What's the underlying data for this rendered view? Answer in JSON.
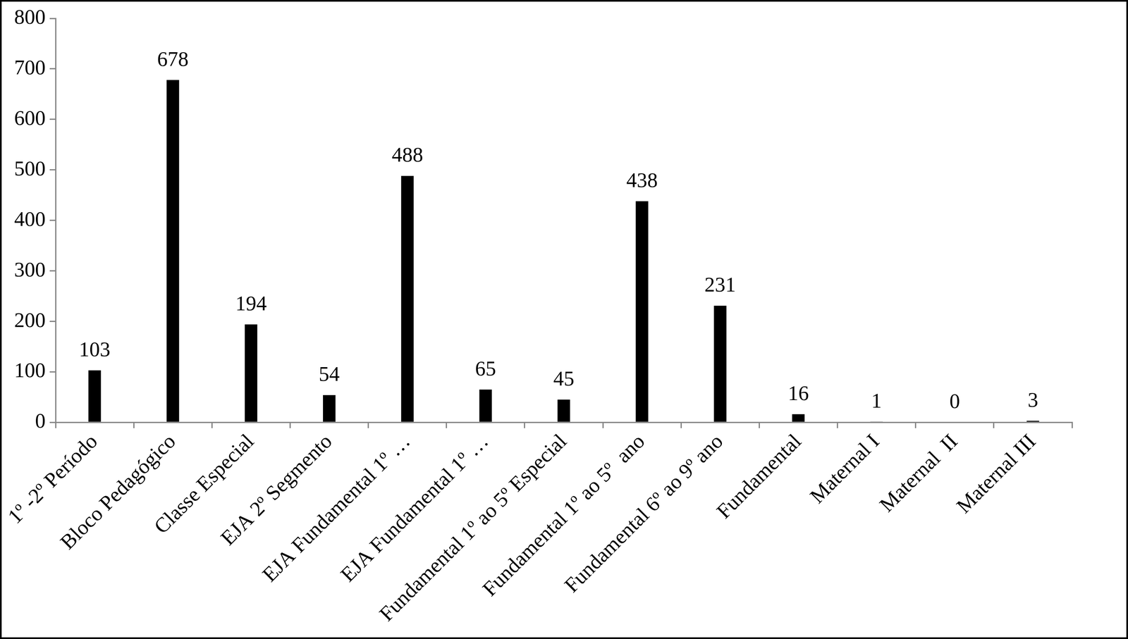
{
  "chart_data": {
    "type": "bar",
    "categories": [
      "1º -2º Período",
      "Bloco Pedagógico",
      "Classe Especial",
      "EJA 2º Segmento",
      "EJA Fundamental 1º …",
      "EJA Fundamental 1º …",
      "Fundamental 1º ao 5º Especial",
      "Fundamental 1º ao 5º  ano",
      "Fundamental 6º ao 9º ano",
      "Fundamental",
      "Maternal I",
      "Maternal  II",
      "Maternal III"
    ],
    "values": [
      103,
      678,
      194,
      54,
      488,
      65,
      45,
      438,
      231,
      16,
      1,
      0,
      3
    ],
    "color": "#000000",
    "ylim": [
      0,
      800
    ],
    "yticks": [
      0,
      100,
      200,
      300,
      400,
      500,
      600,
      700,
      800
    ],
    "grid": false,
    "data_labels": true
  }
}
